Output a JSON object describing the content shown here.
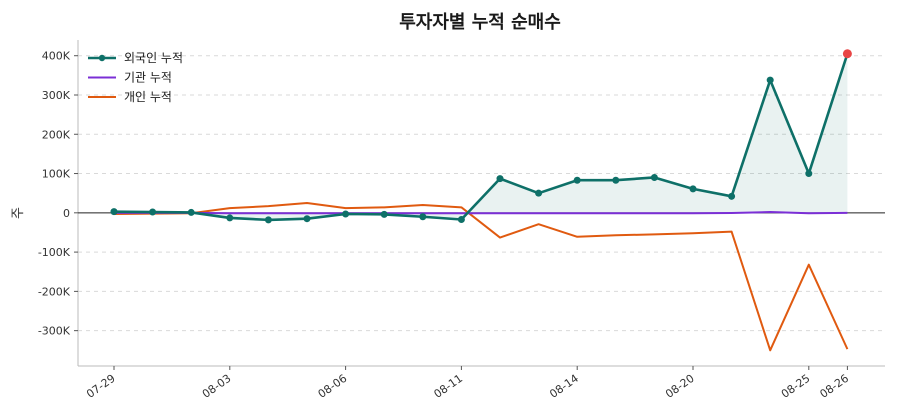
{
  "chart_data": {
    "type": "line",
    "title": "투자자별 누적 순매수",
    "ylabel": "주",
    "xlabel": "",
    "ylim": [
      -390000,
      440000
    ],
    "yticks": [
      -300000,
      -200000,
      -100000,
      0,
      100000,
      200000,
      300000,
      400000
    ],
    "ytick_labels": [
      "-300K",
      "-200K",
      "-100K",
      "0",
      "100K",
      "200K",
      "300K",
      "400K"
    ],
    "x": [
      "07-29",
      "07-30",
      "07-31",
      "08-03",
      "08-04",
      "08-05",
      "08-06",
      "08-07",
      "08-10",
      "08-11",
      "08-12",
      "08-13",
      "08-14",
      "08-17",
      "08-18",
      "08-20",
      "08-21",
      "08-24",
      "08-25",
      "08-26"
    ],
    "xtick_labels": [
      "07-29",
      "08-03",
      "08-06",
      "08-11",
      "08-14",
      "08-20",
      "08-25",
      "08-26"
    ],
    "grid": true,
    "legend_position": "top-left",
    "series": [
      {
        "name": "외국인 누적",
        "color": "#0e7068",
        "markers": true,
        "fill": true,
        "values": [
          3000,
          2000,
          1000,
          -13000,
          -18000,
          -15000,
          -3000,
          -4000,
          -10000,
          -17000,
          87000,
          50000,
          83000,
          83000,
          90000,
          61000,
          42000,
          338000,
          100000,
          405000
        ]
      },
      {
        "name": "기관 누적",
        "color": "#7b2fd6",
        "markers": false,
        "fill": false,
        "values": [
          0,
          0,
          0,
          -1000,
          -1000,
          -1000,
          -1000,
          -1000,
          -1000,
          -1000,
          -1000,
          -1000,
          -1000,
          -1000,
          -1000,
          -1000,
          -500,
          2000,
          -1000,
          0
        ]
      },
      {
        "name": "개인 누적",
        "color": "#e05a10",
        "markers": false,
        "fill": false,
        "values": [
          -3000,
          -2000,
          -1000,
          12000,
          17000,
          25000,
          12000,
          14000,
          20000,
          14000,
          -63000,
          -29000,
          -61000,
          -57000,
          -55000,
          -52000,
          -48000,
          -350000,
          -132000,
          -347000
        ]
      }
    ],
    "highlight_point_color": "#e84545"
  }
}
